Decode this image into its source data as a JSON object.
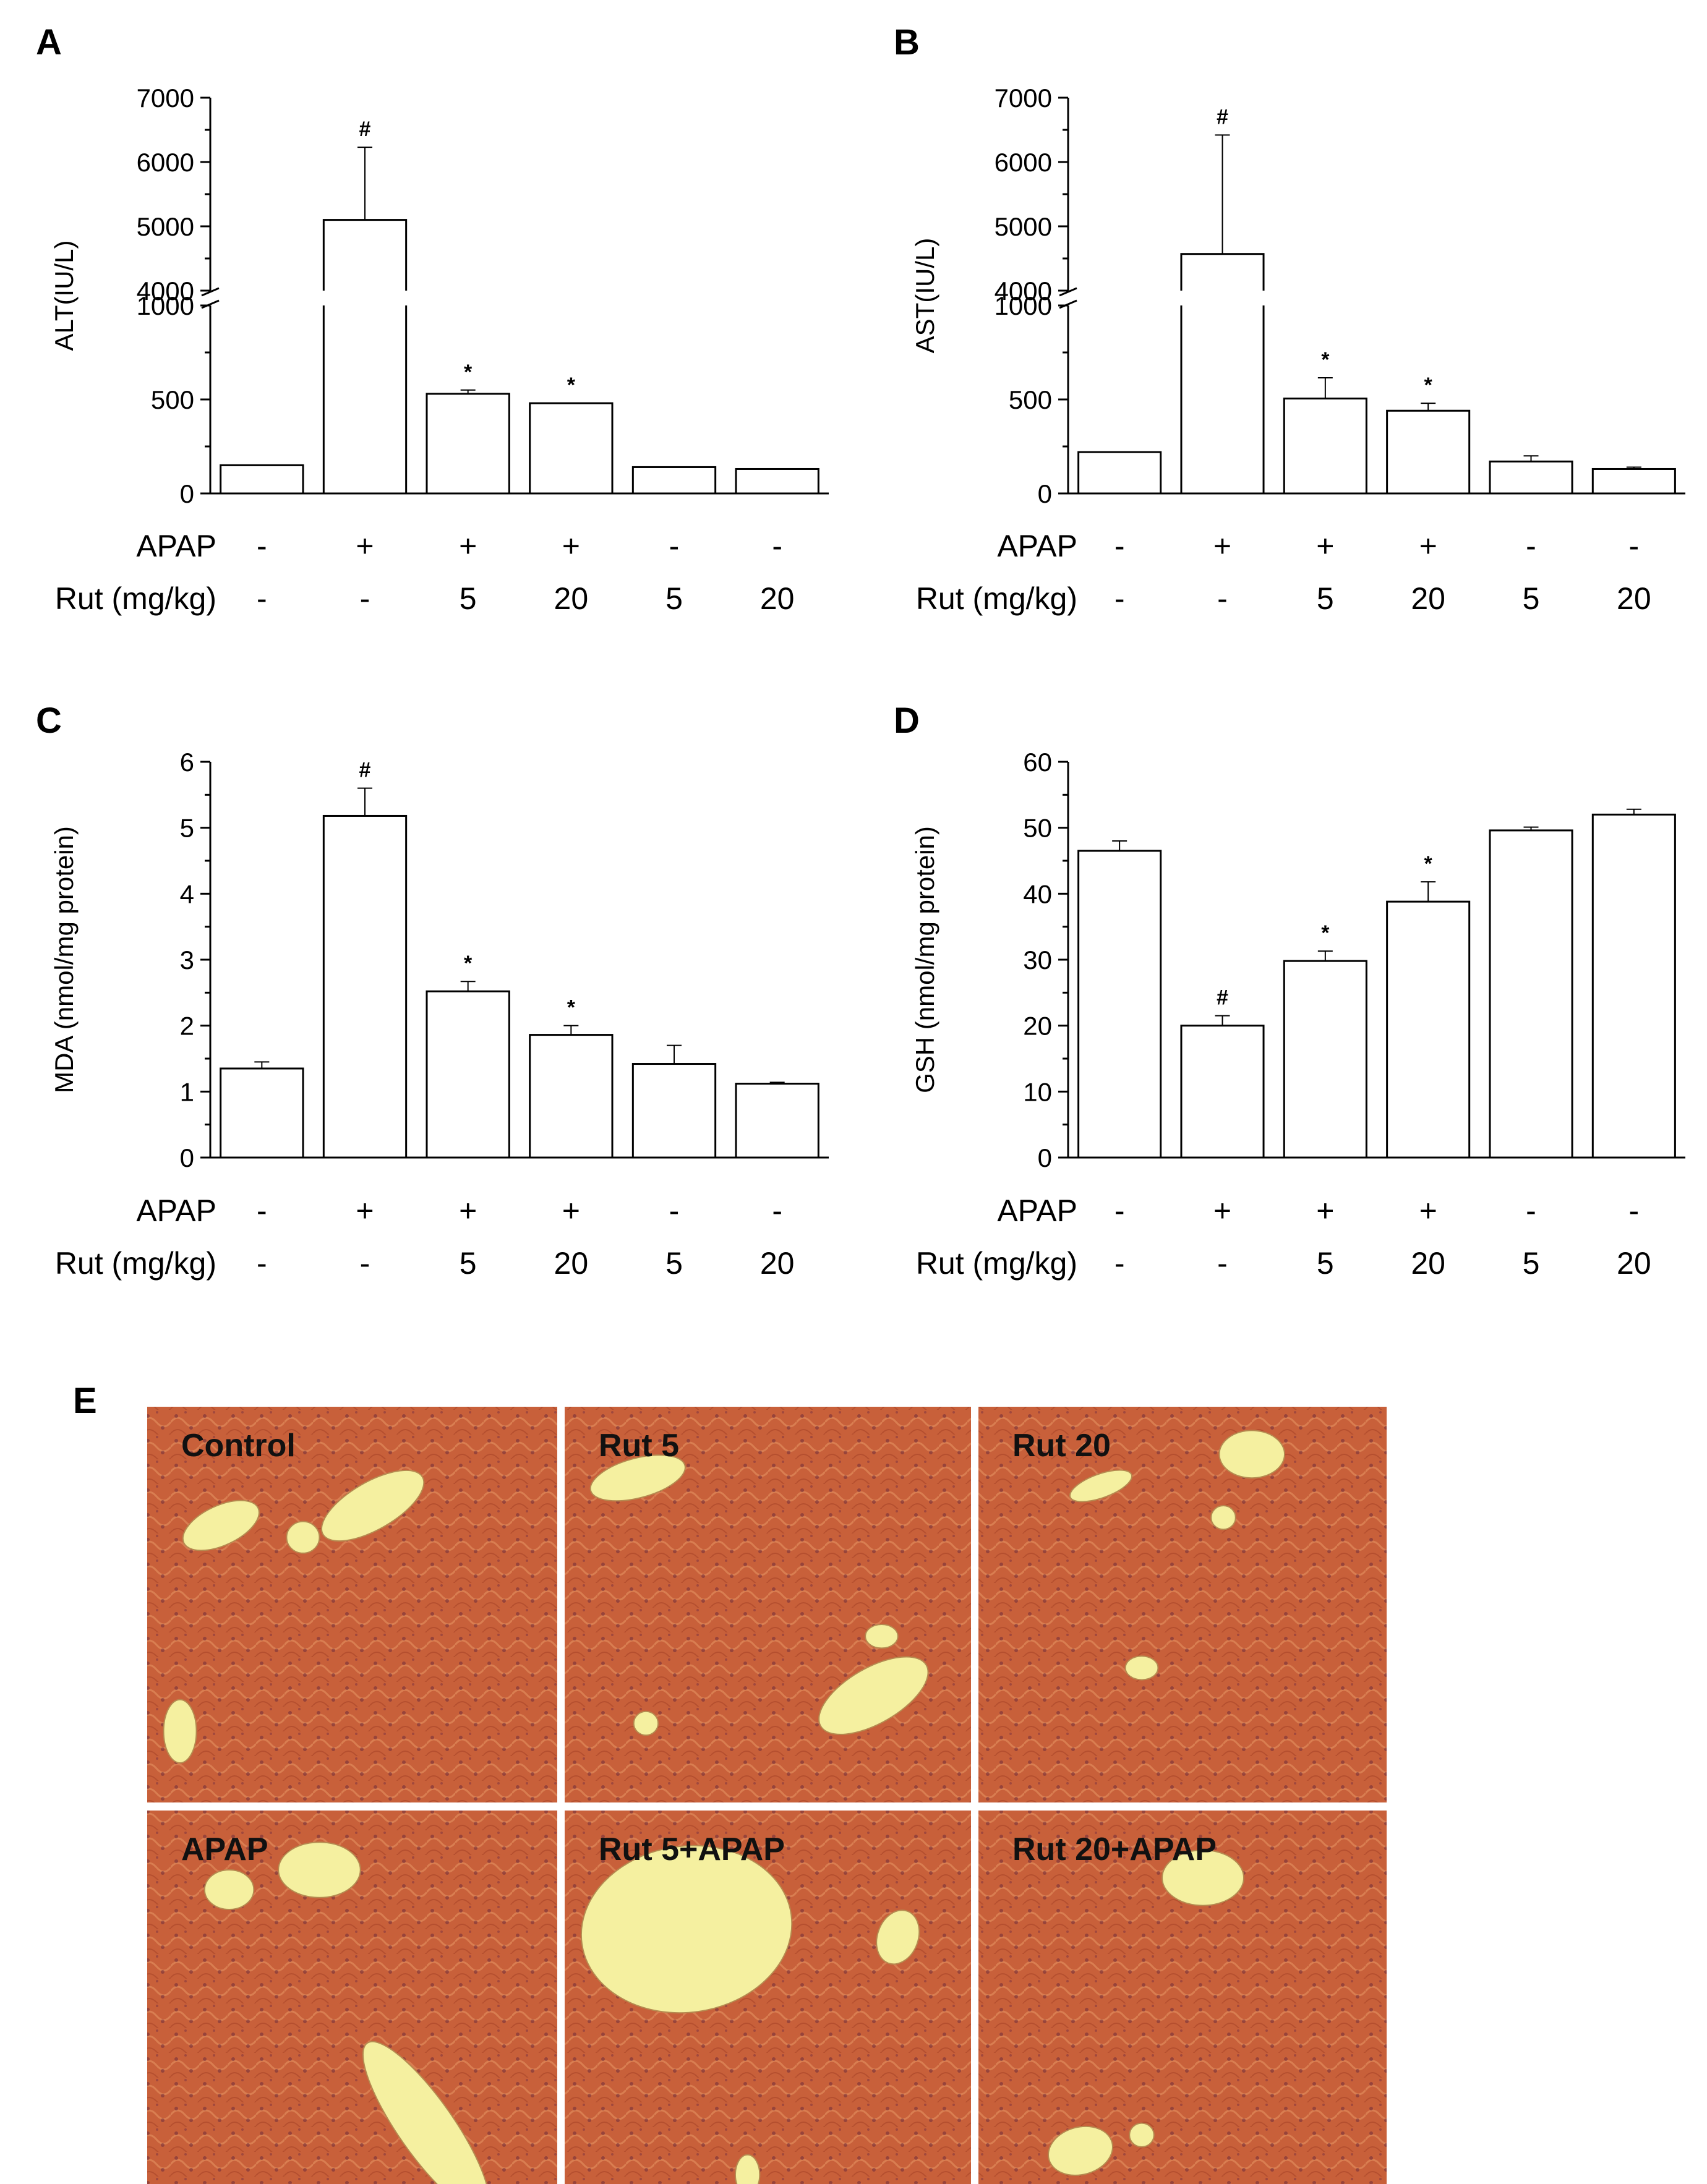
{
  "chart_data": [
    {
      "type": "bar",
      "panel": "A",
      "ylabel": "ALT(IU/L)",
      "axis_break": true,
      "lower_ylim": [
        0,
        1000
      ],
      "upper_ylim": [
        4000,
        7000
      ],
      "lower_ticks": [
        0,
        500,
        1000
      ],
      "upper_ticks": [
        4000,
        5000,
        6000,
        7000
      ],
      "values": [
        150,
        5100,
        530,
        480,
        140,
        130
      ],
      "errors": [
        0,
        1130,
        20,
        0,
        0,
        0
      ],
      "marks": [
        "",
        "#",
        "*",
        "*",
        "",
        ""
      ]
    },
    {
      "type": "bar",
      "panel": "B",
      "ylabel": "AST(IU/L)",
      "axis_break": true,
      "lower_ylim": [
        0,
        1000
      ],
      "upper_ylim": [
        4000,
        7000
      ],
      "lower_ticks": [
        0,
        500,
        1000
      ],
      "upper_ticks": [
        4000,
        5000,
        6000,
        7000
      ],
      "values": [
        220,
        4570,
        505,
        440,
        170,
        130
      ],
      "errors": [
        0,
        1850,
        110,
        40,
        30,
        10
      ],
      "marks": [
        "",
        "#",
        "*",
        "*",
        "",
        ""
      ]
    },
    {
      "type": "bar",
      "panel": "C",
      "ylabel": "MDA (nmol/mg protein)",
      "axis_break": false,
      "ylim": [
        0,
        6
      ],
      "ticks": [
        0,
        1,
        2,
        3,
        4,
        5,
        6
      ],
      "values": [
        1.35,
        5.18,
        2.52,
        1.86,
        1.42,
        1.12
      ],
      "errors": [
        0.1,
        0.42,
        0.15,
        0.14,
        0.28,
        0.02
      ],
      "marks": [
        "",
        "#",
        "*",
        "*",
        "",
        ""
      ]
    },
    {
      "type": "bar",
      "panel": "D",
      "ylabel": "GSH (nmol/mg protein)",
      "axis_break": false,
      "ylim": [
        0,
        60
      ],
      "ticks": [
        0,
        10,
        20,
        30,
        40,
        50,
        60
      ],
      "values": [
        46.5,
        20.0,
        29.8,
        38.8,
        49.6,
        52.0
      ],
      "errors": [
        1.5,
        1.5,
        1.5,
        3.0,
        0.5,
        0.8
      ],
      "marks": [
        "",
        "#",
        "*",
        "*",
        "",
        ""
      ]
    }
  ],
  "conditions": {
    "apap_label": "APAP",
    "rut_label": "Rut (mg/kg)",
    "apap": [
      "-",
      "+",
      "+",
      "+",
      "-",
      "-"
    ],
    "rut": [
      "-",
      "-",
      "5",
      "20",
      "5",
      "20"
    ]
  },
  "photos": {
    "panel": "E",
    "labels": [
      "Control",
      "Rut 5",
      "Rut 20",
      "APAP",
      "Rut 5+APAP",
      "Rut 20+APAP"
    ],
    "tissue_color": "#c8603a",
    "vessel_color": "#f5f0a0"
  }
}
